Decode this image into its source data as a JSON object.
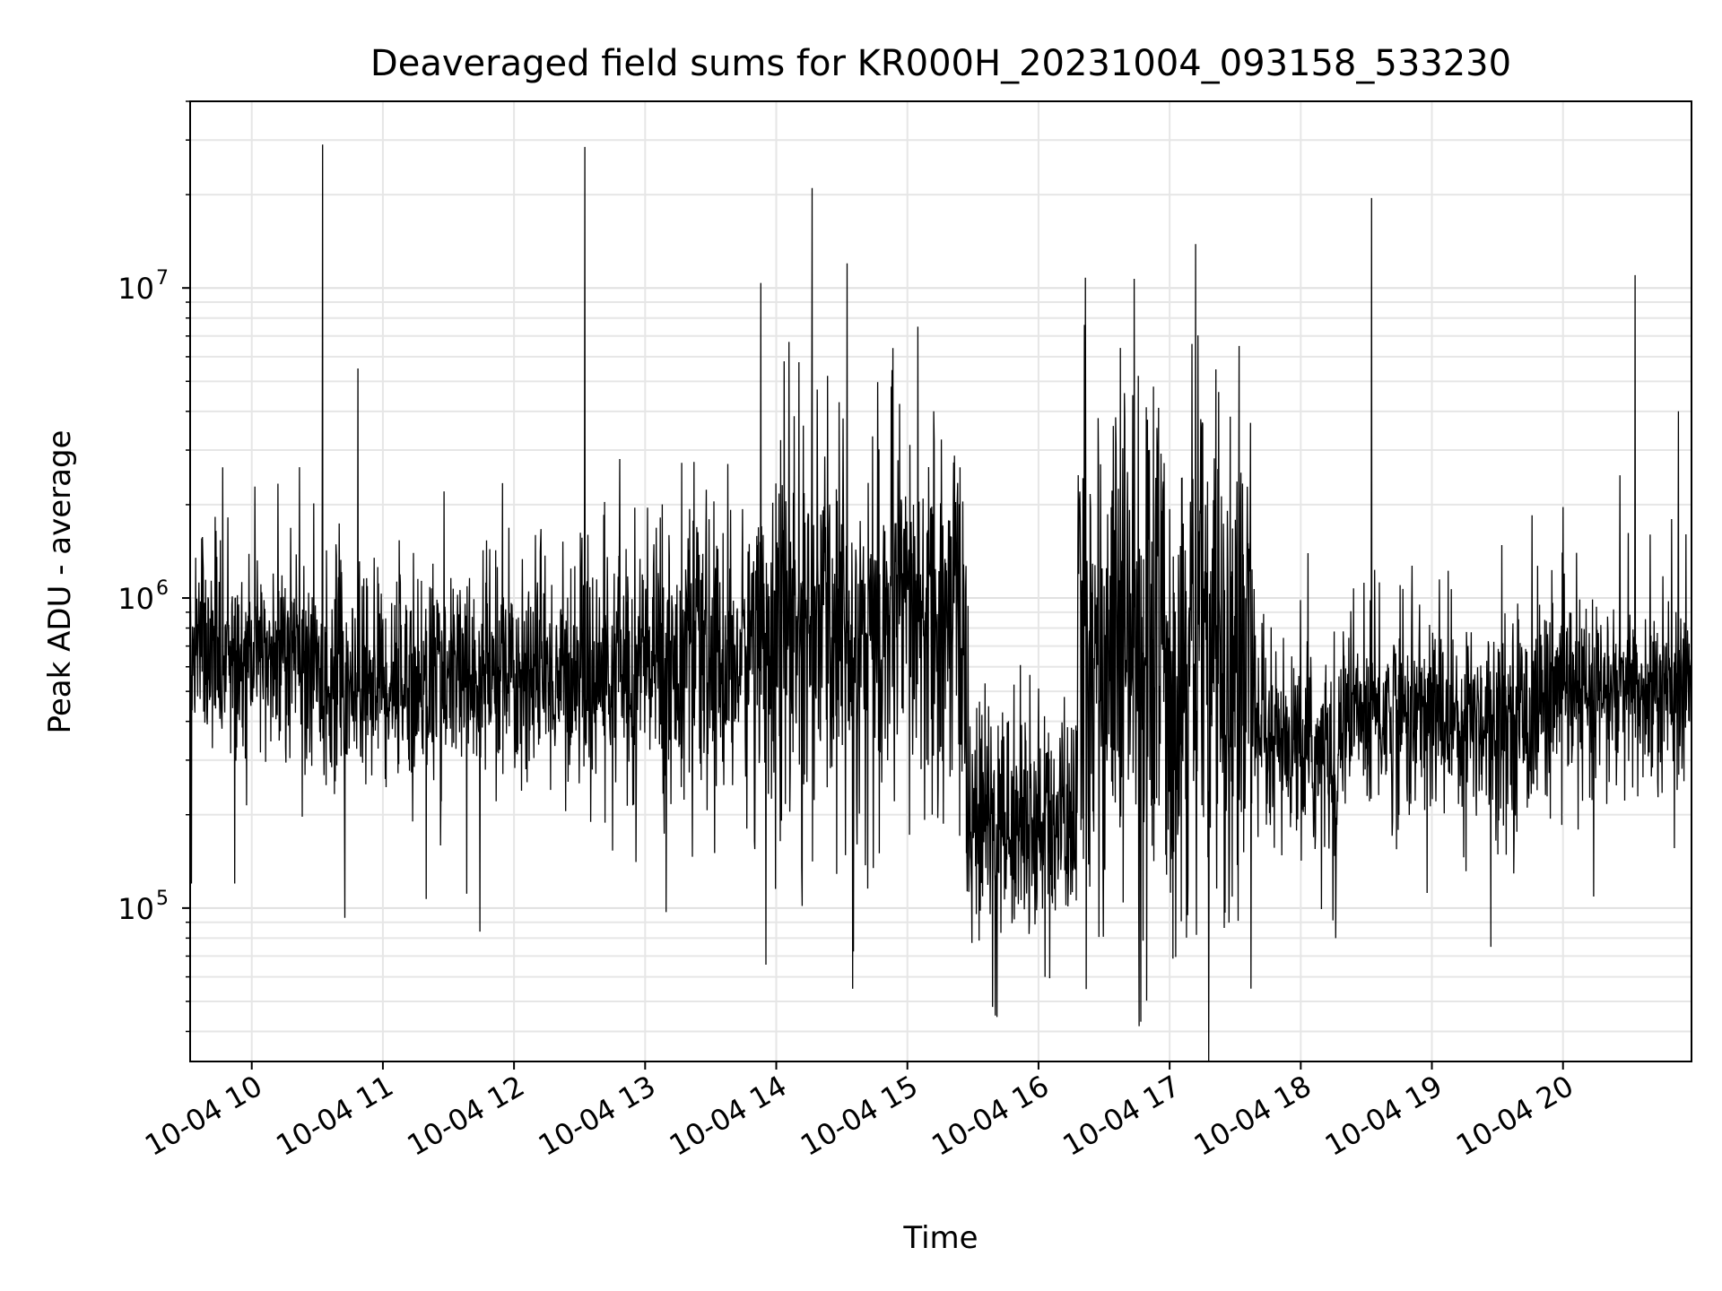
{
  "chart_data": {
    "type": "line",
    "title": "Deaveraged field sums for KR000H_20231004_093158_533230",
    "xlabel": "Time",
    "ylabel": "Peak ADU - average",
    "y_scale": "log",
    "x_unit": "hour of 2023-10-04",
    "xlim": [
      9.53,
      20.98
    ],
    "ylim": [
      32000,
      40000000
    ],
    "grid": true,
    "line_color": "#000000",
    "x_ticks": [
      {
        "value": 10,
        "label": "10-04 10"
      },
      {
        "value": 11,
        "label": "10-04 11"
      },
      {
        "value": 12,
        "label": "10-04 12"
      },
      {
        "value": 13,
        "label": "10-04 13"
      },
      {
        "value": 14,
        "label": "10-04 14"
      },
      {
        "value": 15,
        "label": "10-04 15"
      },
      {
        "value": 16,
        "label": "10-04 16"
      },
      {
        "value": 17,
        "label": "10-04 17"
      },
      {
        "value": 18,
        "label": "10-04 18"
      },
      {
        "value": 19,
        "label": "10-04 19"
      },
      {
        "value": 20,
        "label": "10-04 20"
      }
    ],
    "y_ticks": [
      {
        "value": 100000,
        "base": "10",
        "exp": "5"
      },
      {
        "value": 1000000,
        "base": "10",
        "exp": "6"
      },
      {
        "value": 10000000,
        "base": "10",
        "exp": "7"
      }
    ],
    "segments": [
      {
        "x_start": 9.53,
        "x_end": 10.4,
        "median": 650000,
        "spread_dex": 0.17
      },
      {
        "x_start": 10.4,
        "x_end": 12.8,
        "median": 560000,
        "spread_dex": 0.17
      },
      {
        "x_start": 12.8,
        "x_end": 13.8,
        "median": 620000,
        "spread_dex": 0.22
      },
      {
        "x_start": 13.8,
        "x_end": 15.45,
        "median": 820000,
        "spread_dex": 0.3
      },
      {
        "x_start": 15.45,
        "x_end": 16.3,
        "median": 190000,
        "spread_dex": 0.18
      },
      {
        "x_start": 16.3,
        "x_end": 17.65,
        "median": 650000,
        "spread_dex": 0.42
      },
      {
        "x_start": 17.65,
        "x_end": 18.3,
        "median": 310000,
        "spread_dex": 0.16
      },
      {
        "x_start": 18.3,
        "x_end": 19.8,
        "median": 420000,
        "spread_dex": 0.17
      },
      {
        "x_start": 19.8,
        "x_end": 20.98,
        "median": 480000,
        "spread_dex": 0.16
      }
    ],
    "spikes": [
      {
        "x": 10.54,
        "y": 29000000
      },
      {
        "x": 10.81,
        "y": 5500000
      },
      {
        "x": 12.54,
        "y": 28500000
      },
      {
        "x": 14.54,
        "y": 12000000
      },
      {
        "x": 14.06,
        "y": 5800000
      },
      {
        "x": 14.89,
        "y": 6400000
      },
      {
        "x": 15.08,
        "y": 7500000
      },
      {
        "x": 16.35,
        "y": 7600000
      },
      {
        "x": 16.73,
        "y": 10700000
      },
      {
        "x": 17.17,
        "y": 6600000
      },
      {
        "x": 17.53,
        "y": 6500000
      },
      {
        "x": 18.54,
        "y": 19500000
      },
      {
        "x": 20.55,
        "y": 11000000
      },
      {
        "x": 20.88,
        "y": 4000000
      }
    ],
    "dips": [
      {
        "x": 9.54,
        "y": 120000
      },
      {
        "x": 9.87,
        "y": 120000
      },
      {
        "x": 10.71,
        "y": 93000
      },
      {
        "x": 11.33,
        "y": 107000
      },
      {
        "x": 11.74,
        "y": 84000
      },
      {
        "x": 13.16,
        "y": 97000
      },
      {
        "x": 15.65,
        "y": 48000
      },
      {
        "x": 15.67,
        "y": 45000
      },
      {
        "x": 16.05,
        "y": 60000
      },
      {
        "x": 16.78,
        "y": 43000
      },
      {
        "x": 17.62,
        "y": 55000
      },
      {
        "x": 19.45,
        "y": 75000
      }
    ]
  }
}
